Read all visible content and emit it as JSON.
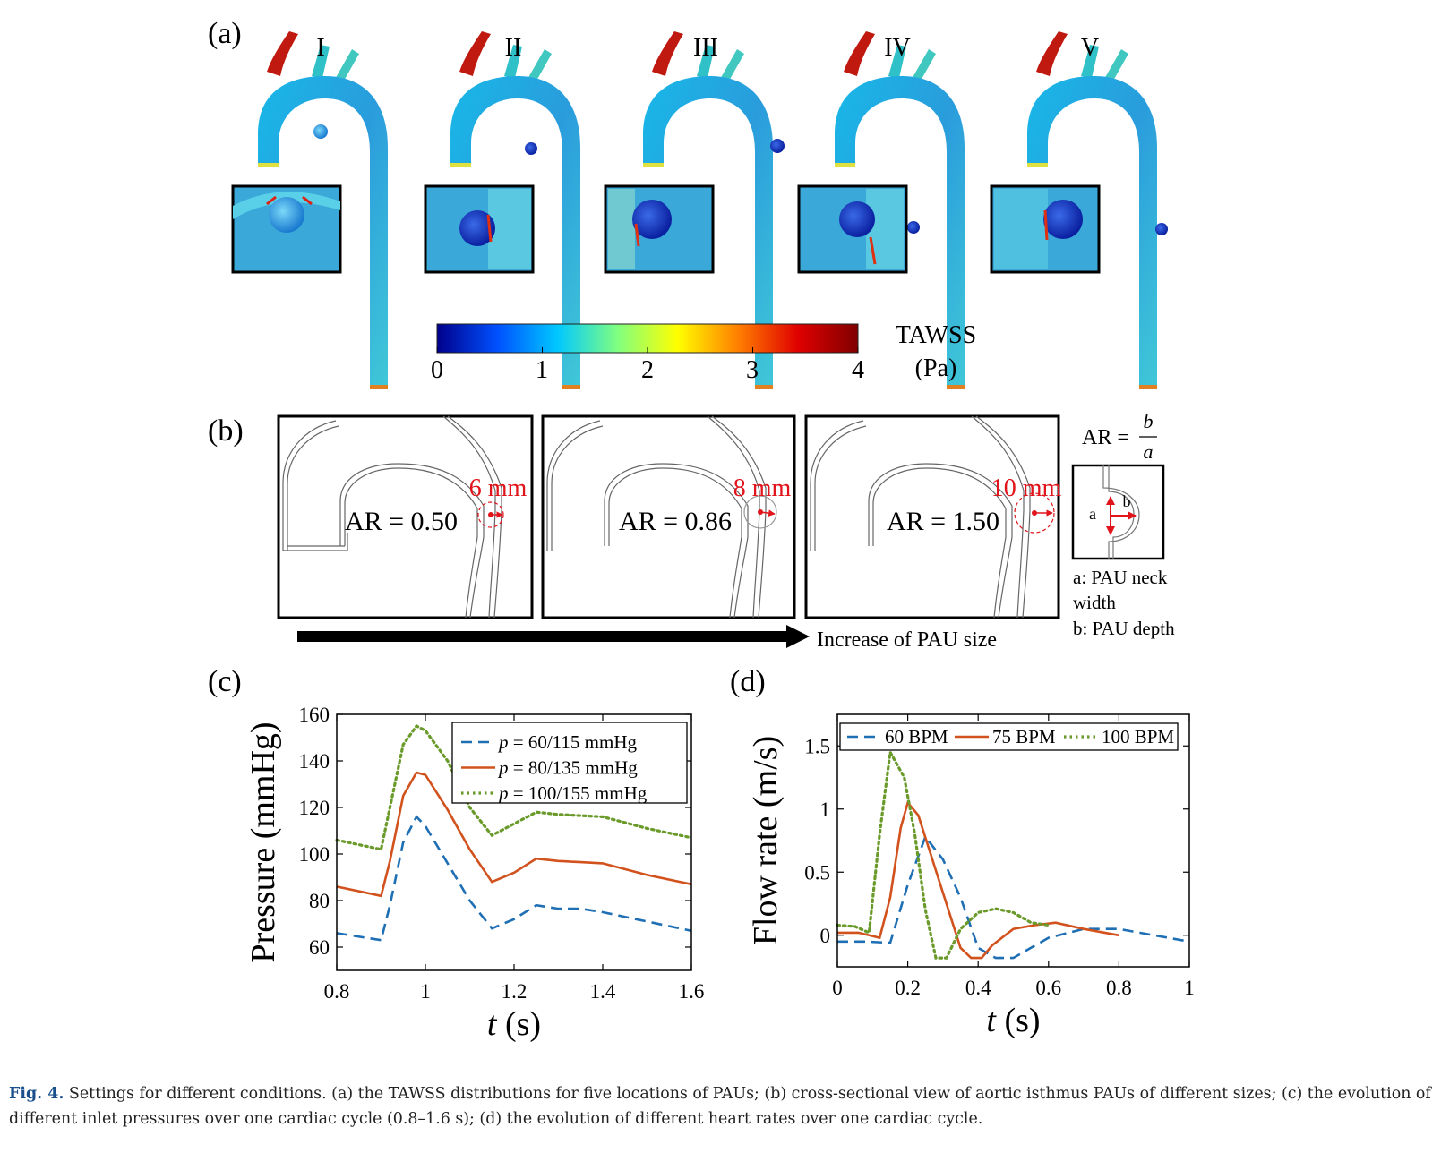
{
  "panel_a": {
    "label": "(a)",
    "locations": [
      "I",
      "II",
      "III",
      "IV",
      "V"
    ],
    "colorbar": {
      "title": "TAWSS",
      "unit": "(Pa)",
      "ticks": [
        "0",
        "1",
        "2",
        "3",
        "4"
      ],
      "colors": [
        "#00008b",
        "#0050ff",
        "#00c8ff",
        "#80ff80",
        "#ffff00",
        "#ff8000",
        "#e00000",
        "#800000"
      ]
    }
  },
  "panel_b": {
    "label": "(b)",
    "sizes": [
      {
        "size": "6 mm",
        "ar": "AR = 0.50"
      },
      {
        "size": "8 mm",
        "ar": "AR = 0.86"
      },
      {
        "size": "10 mm",
        "ar": "AR = 1.50"
      }
    ],
    "arrow_label": "Increase of PAU size",
    "formula_lhs": "AR =",
    "formula_num": "b",
    "formula_den": "a",
    "inset_a": "a",
    "inset_b": "b",
    "legend_a_line1": "a: PAU neck",
    "legend_a_line2": "width",
    "legend_b": "b: PAU depth"
  },
  "chart_data": [
    {
      "type": "line",
      "panel": "(c)",
      "ylabel": "Pressure (mmHg)",
      "xlabel_var": "t",
      "xlabel_unit": " (s)",
      "xlim": [
        0.8,
        1.6
      ],
      "ylim": [
        50,
        160
      ],
      "xticks": [
        "0.8",
        "1",
        "1.2",
        "1.4",
        "1.6"
      ],
      "yticks": [
        "60",
        "80",
        "100",
        "120",
        "140",
        "160"
      ],
      "legend_prefix": "p",
      "series": [
        {
          "name": " = 60/115 mmHg",
          "color": "#1f6fb4",
          "style": "dashed",
          "points": [
            [
              0.8,
              66
            ],
            [
              0.9,
              63
            ],
            [
              0.92,
              78
            ],
            [
              0.95,
              105
            ],
            [
              0.98,
              116
            ],
            [
              1.0,
              112
            ],
            [
              1.05,
              96
            ],
            [
              1.1,
              80
            ],
            [
              1.15,
              68
            ],
            [
              1.2,
              72
            ],
            [
              1.25,
              78
            ],
            [
              1.3,
              76.5
            ],
            [
              1.35,
              76.5
            ],
            [
              1.4,
              75
            ],
            [
              1.5,
              71
            ],
            [
              1.6,
              67
            ]
          ]
        },
        {
          "name": " = 80/135 mmHg",
          "color": "#d2521e",
          "style": "solid",
          "points": [
            [
              0.8,
              86
            ],
            [
              0.9,
              82
            ],
            [
              0.92,
              97
            ],
            [
              0.95,
              125
            ],
            [
              0.98,
              135
            ],
            [
              1.0,
              134
            ],
            [
              1.05,
              119
            ],
            [
              1.1,
              102
            ],
            [
              1.15,
              88
            ],
            [
              1.2,
              92
            ],
            [
              1.25,
              98
            ],
            [
              1.3,
              97
            ],
            [
              1.35,
              96.5
            ],
            [
              1.4,
              96
            ],
            [
              1.5,
              91
            ],
            [
              1.6,
              87
            ]
          ]
        },
        {
          "name": " = 100/155 mmHg",
          "color": "#6a9a2a",
          "style": "dotted",
          "points": [
            [
              0.8,
              106
            ],
            [
              0.9,
              102
            ],
            [
              0.92,
              120
            ],
            [
              0.95,
              147
            ],
            [
              0.98,
              155
            ],
            [
              1.0,
              153
            ],
            [
              1.05,
              140
            ],
            [
              1.1,
              120
            ],
            [
              1.15,
              108
            ],
            [
              1.2,
              113
            ],
            [
              1.25,
              118
            ],
            [
              1.3,
              117
            ],
            [
              1.35,
              116.5
            ],
            [
              1.4,
              116
            ],
            [
              1.5,
              111
            ],
            [
              1.6,
              107
            ]
          ]
        }
      ]
    },
    {
      "type": "line",
      "panel": "(d)",
      "ylabel": "Flow rate (m/s)",
      "xlabel_var": "t",
      "xlabel_unit": " (s)",
      "xlim": [
        0,
        1
      ],
      "ylim": [
        -0.25,
        1.75
      ],
      "xticks": [
        "0",
        "0.2",
        "0.4",
        "0.6",
        "0.8",
        "1"
      ],
      "yticks": [
        "0",
        "0.5",
        "1",
        "1.5"
      ],
      "series": [
        {
          "name": "60 BPM",
          "color": "#1f6fb4",
          "style": "dashed",
          "points": [
            [
              0,
              -0.05
            ],
            [
              0.08,
              -0.05
            ],
            [
              0.15,
              -0.06
            ],
            [
              0.2,
              0.4
            ],
            [
              0.25,
              0.78
            ],
            [
              0.3,
              0.6
            ],
            [
              0.35,
              0.3
            ],
            [
              0.4,
              -0.1
            ],
            [
              0.45,
              -0.18
            ],
            [
              0.5,
              -0.18
            ],
            [
              0.55,
              -0.1
            ],
            [
              0.6,
              -0.02
            ],
            [
              0.7,
              0.05
            ],
            [
              0.8,
              0.05
            ],
            [
              0.9,
              0.0
            ],
            [
              1.0,
              -0.05
            ]
          ]
        },
        {
          "name": "75 BPM",
          "color": "#d2521e",
          "style": "solid",
          "points": [
            [
              0,
              0.02
            ],
            [
              0.06,
              0.02
            ],
            [
              0.12,
              -0.02
            ],
            [
              0.15,
              0.3
            ],
            [
              0.18,
              0.85
            ],
            [
              0.2,
              1.05
            ],
            [
              0.23,
              0.95
            ],
            [
              0.27,
              0.6
            ],
            [
              0.31,
              0.25
            ],
            [
              0.35,
              -0.1
            ],
            [
              0.38,
              -0.18
            ],
            [
              0.41,
              -0.18
            ],
            [
              0.44,
              -0.08
            ],
            [
              0.5,
              0.05
            ],
            [
              0.56,
              0.08
            ],
            [
              0.62,
              0.1
            ],
            [
              0.7,
              0.05
            ],
            [
              0.8,
              0.0
            ]
          ]
        },
        {
          "name": "100 BPM",
          "color": "#6a9a2a",
          "style": "dotted",
          "points": [
            [
              0,
              0.08
            ],
            [
              0.05,
              0.07
            ],
            [
              0.09,
              0.02
            ],
            [
              0.12,
              0.8
            ],
            [
              0.15,
              1.45
            ],
            [
              0.19,
              1.25
            ],
            [
              0.22,
              0.8
            ],
            [
              0.25,
              0.2
            ],
            [
              0.28,
              -0.18
            ],
            [
              0.31,
              -0.18
            ],
            [
              0.35,
              0.05
            ],
            [
              0.4,
              0.18
            ],
            [
              0.45,
              0.21
            ],
            [
              0.5,
              0.18
            ],
            [
              0.55,
              0.1
            ],
            [
              0.6,
              0.08
            ]
          ]
        }
      ]
    }
  ],
  "caption": {
    "fig_label": "Fig. 4.",
    "text": " Settings for different conditions. (a) the TAWSS distributions for five locations of PAUs; (b) cross-sectional view of aortic isthmus PAUs of different sizes; (c) the evolution of different inlet pressures over one cardiac cycle (0.8–1.6 s); (d) the evolution of different heart rates over one cardiac cycle."
  }
}
